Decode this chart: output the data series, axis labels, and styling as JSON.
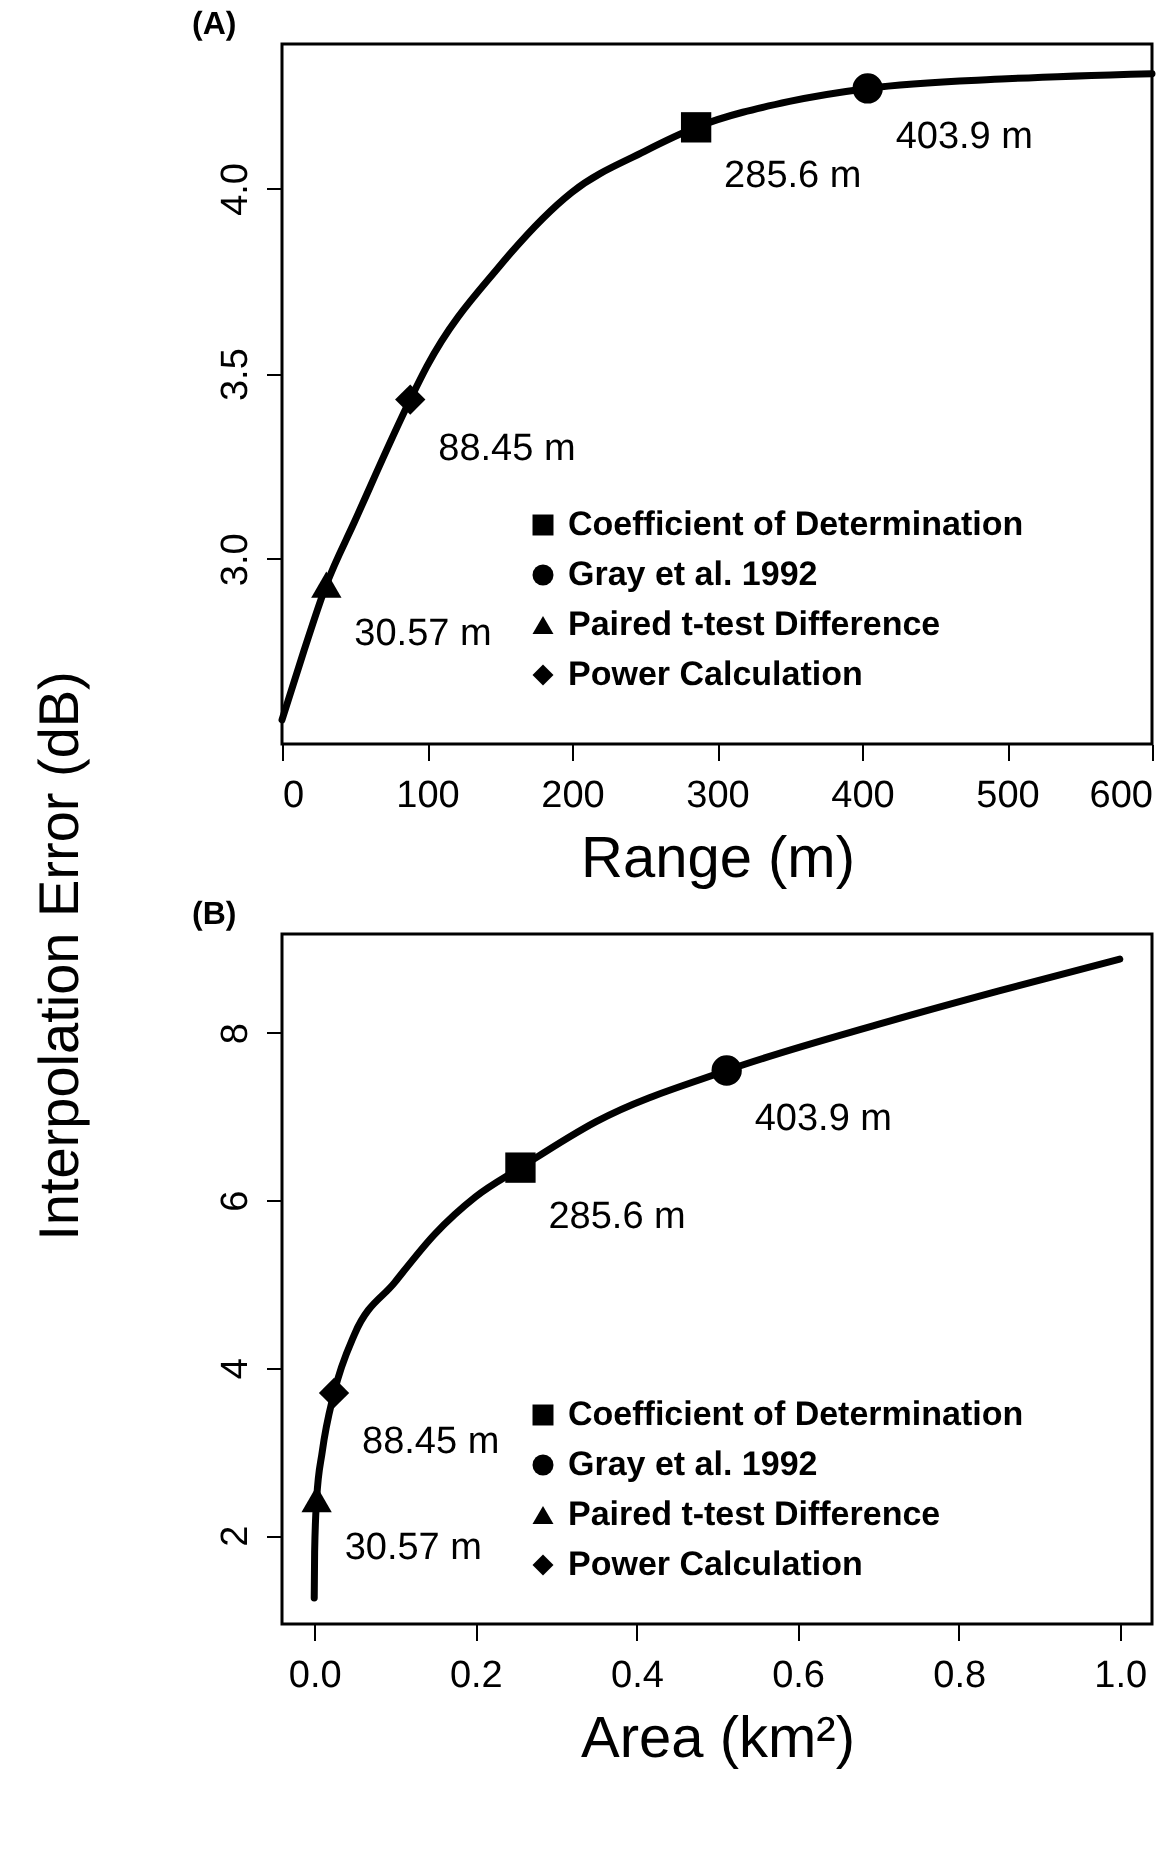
{
  "chart_data": [
    {
      "type": "line",
      "title": "(A)",
      "xlabel": "Range (m)",
      "ylabel": "Interpolation Error (dB)",
      "xlim": [
        0,
        600
      ],
      "xticks": [
        0,
        100,
        200,
        300,
        400,
        500,
        600
      ],
      "ylim": [
        2.5,
        4.39
      ],
      "yticks": [
        {
          "value": 3,
          "label": "3.0"
        },
        3.5,
        {
          "value": 4,
          "label": "4.0"
        }
      ],
      "grid": false,
      "legend": "bottom right",
      "series": [
        {
          "type": "line",
          "color": "#000000",
          "x": [
            0,
            15,
            30.57,
            50,
            88.45,
            100,
            150,
            200,
            250,
            285.6,
            350,
            403.9,
            500,
            600
          ],
          "values": [
            2.565,
            2.75,
            2.93,
            3.1,
            3.43,
            3.52,
            3.79,
            3.99,
            4.1,
            4.165,
            4.235,
            4.27,
            4.296,
            4.31
          ]
        },
        {
          "type": "scatter",
          "name": "Coefficient of Determination",
          "marker": "square",
          "color": "#000000",
          "x": [
            285.6
          ],
          "values": [
            4.165
          ]
        },
        {
          "type": "scatter",
          "name": "Gray et al. 1992",
          "marker": "circle",
          "color": "#000000",
          "x": [
            403.9
          ],
          "values": [
            4.27
          ]
        },
        {
          "type": "scatter",
          "name": "Paired t-test Difference",
          "marker": "triangle",
          "color": "#000000",
          "x": [
            30.57
          ],
          "values": [
            2.93
          ]
        },
        {
          "type": "scatter",
          "name": "Power Calculation",
          "marker": "diamond",
          "color": "#000000",
          "x": [
            88.45
          ],
          "values": [
            3.43
          ]
        }
      ],
      "annotations": [
        {
          "text": "285.6 m",
          "x": 285.6,
          "y": 4.165
        },
        {
          "text": "403.9 m",
          "x": 403.9,
          "y": 4.27
        },
        {
          "text": "30.57 m",
          "x": 30.57,
          "y": 2.93
        },
        {
          "text": "88.45 m",
          "x": 88.45,
          "y": 3.43
        }
      ]
    },
    {
      "type": "line",
      "title": "(B)",
      "xlabel": "Area (km²)",
      "xlim": [
        -0.04,
        1.04
      ],
      "xticks": [
        {
          "value": 0,
          "label": "0.0"
        },
        0.2,
        0.4,
        0.6,
        0.8,
        {
          "value": 1,
          "label": "1.0"
        }
      ],
      "ylim": [
        0.94,
        9.18
      ],
      "yticks": [
        2,
        4,
        6,
        8
      ],
      "grid": false,
      "legend": "bottom right",
      "series": [
        {
          "type": "line",
          "color": "#000000",
          "x": [
            0,
            0.0005,
            0.003,
            0.01,
            0.0246,
            0.05,
            0.1,
            0.15,
            0.2,
            0.256,
            0.35,
            0.512,
            0.7,
            0.85,
            1.0
          ],
          "values": [
            1.25,
            1.8,
            2.43,
            3.0,
            3.7,
            4.4,
            5.02,
            5.6,
            6.04,
            6.39,
            6.94,
            7.55,
            8.1,
            8.5,
            8.88
          ]
        },
        {
          "type": "scatter",
          "name": "Coefficient of Determination",
          "marker": "square",
          "color": "#000000",
          "x": [
            0.256
          ],
          "values": [
            6.39
          ]
        },
        {
          "type": "scatter",
          "name": "Gray et al. 1992",
          "marker": "circle",
          "color": "#000000",
          "x": [
            0.512
          ],
          "values": [
            7.55
          ]
        },
        {
          "type": "scatter",
          "name": "Paired t-test Difference",
          "marker": "triangle",
          "color": "#000000",
          "x": [
            0.003
          ],
          "values": [
            2.43
          ]
        },
        {
          "type": "scatter",
          "name": "Power Calculation",
          "marker": "diamond",
          "color": "#000000",
          "x": [
            0.0246
          ],
          "values": [
            3.7
          ]
        }
      ],
      "annotations": [
        {
          "text": "285.6 m",
          "x": 0.256,
          "y": 6.39
        },
        {
          "text": "403.9 m",
          "x": 0.512,
          "y": 7.55
        },
        {
          "text": "30.57 m",
          "x": 0.003,
          "y": 2.43
        },
        {
          "text": "88.45 m",
          "x": 0.0246,
          "y": 3.7
        }
      ]
    }
  ]
}
